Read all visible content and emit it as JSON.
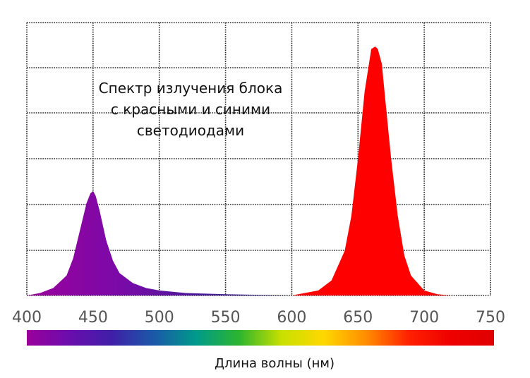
{
  "chart_data": {
    "type": "area",
    "title_lines": [
      "Спектр излучения блока",
      "с красными и синими",
      "светодиодами"
    ],
    "xlabel": "Длина волны (нм)",
    "ylabel": "",
    "xlim": [
      400,
      750
    ],
    "ylim": [
      0,
      1
    ],
    "grid": true,
    "x_ticks": [
      400,
      450,
      500,
      550,
      600,
      650,
      700,
      750
    ],
    "x_tick_labels": [
      "400",
      "450",
      "500",
      "550",
      "600",
      "650",
      "700",
      "750"
    ],
    "series": [
      {
        "color": "#6a0dad",
        "x": [
          400,
          410,
          420,
          430,
          435,
          440,
          445,
          448,
          450,
          452,
          455,
          460,
          465,
          470,
          480,
          490,
          500,
          520,
          550,
          580,
          600
        ],
        "y": [
          0.0,
          0.01,
          0.03,
          0.08,
          0.15,
          0.26,
          0.37,
          0.41,
          0.42,
          0.4,
          0.34,
          0.22,
          0.14,
          0.09,
          0.05,
          0.03,
          0.02,
          0.01,
          0.005,
          0.002,
          0.0
        ]
      },
      {
        "color": "#ff0000",
        "x": [
          600,
          620,
          630,
          640,
          645,
          650,
          655,
          660,
          663,
          665,
          668,
          670,
          675,
          680,
          685,
          690,
          700,
          710,
          720
        ],
        "y": [
          0.0,
          0.02,
          0.06,
          0.18,
          0.32,
          0.55,
          0.82,
          0.99,
          1.0,
          0.99,
          0.93,
          0.82,
          0.55,
          0.32,
          0.16,
          0.08,
          0.02,
          0.005,
          0.0
        ]
      }
    ],
    "spectrum_colors": [
      "#9b009b",
      "#6a0dad",
      "#3f1fa8",
      "#1a5aa8",
      "#009b8a",
      "#2db52d",
      "#c8e000",
      "#ffd800",
      "#ff8c00",
      "#ff2000",
      "#ee0000",
      "#e00000"
    ]
  }
}
